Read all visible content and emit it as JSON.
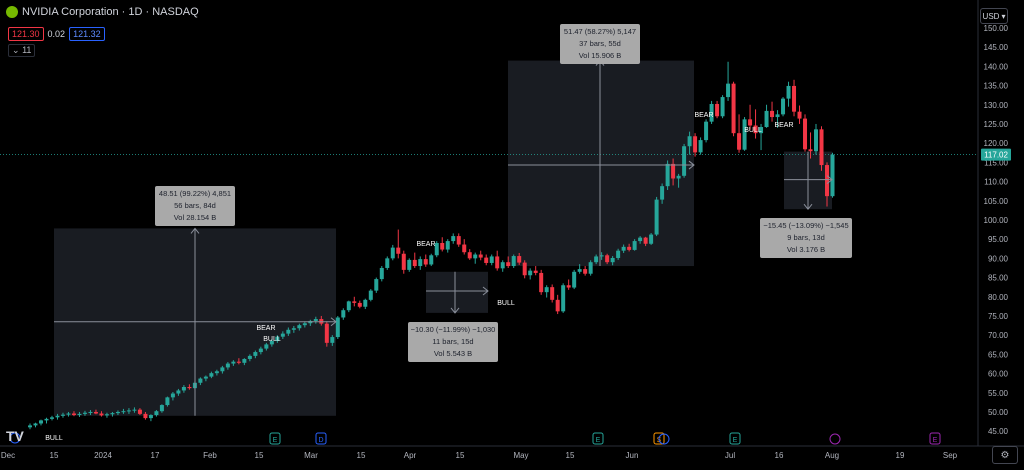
{
  "header": {
    "title": "NVIDIA Corporation · 1D · NASDAQ"
  },
  "prices": {
    "sell": "121.30",
    "spread": "0.02",
    "buy": "121.32"
  },
  "indicators": {
    "count": "11"
  },
  "currency": {
    "label": "USD"
  },
  "current_price": "117.02",
  "colors": {
    "up": "#26a69a",
    "down": "#f23645",
    "bg": "#000000",
    "grid": "#1a1d26",
    "box": "#1c1f26",
    "label_bg": "#a9a9a9"
  },
  "chart_data": {
    "type": "candlestick",
    "symbol": "NVIDIA Corporation",
    "interval": "1D",
    "exchange": "NASDAQ",
    "ylim": [
      43.5,
      154
    ],
    "y_ticks": [
      45,
      50,
      55,
      60,
      65,
      70,
      75,
      80,
      85,
      90,
      95,
      100,
      105,
      110,
      115,
      120,
      125,
      130,
      135,
      140,
      145,
      150
    ],
    "x_ticks": [
      "Dec",
      "15",
      "2024",
      "17",
      "Feb",
      "15",
      "Mar",
      "15",
      "Apr",
      "15",
      "May",
      "15",
      "Jun",
      "Jul",
      "16",
      "Aug",
      "19",
      "Sep"
    ],
    "grid": false,
    "candles": [
      [
        46,
        47,
        45.5,
        46.5
      ],
      [
        46.5,
        47.2,
        46,
        47
      ],
      [
        47,
        48,
        46.5,
        47.8
      ],
      [
        47.8,
        48.5,
        47,
        48.2
      ],
      [
        48.2,
        49,
        47.8,
        48.6
      ],
      [
        48.6,
        49.5,
        48,
        49
      ],
      [
        49,
        49.8,
        48.5,
        49.3
      ],
      [
        49.3,
        50,
        48.8,
        49.6
      ],
      [
        49.6,
        50.2,
        48.9,
        49.2
      ],
      [
        49.2,
        50,
        48.7,
        49.5
      ],
      [
        49.5,
        50.3,
        49,
        49.8
      ],
      [
        49.8,
        50.5,
        49.2,
        50
      ],
      [
        50,
        50.6,
        49.4,
        49.6
      ],
      [
        49.6,
        50.2,
        48.8,
        49.1
      ],
      [
        49.1,
        49.8,
        48.5,
        49.4
      ],
      [
        49.4,
        50,
        48.8,
        49.7
      ],
      [
        49.7,
        50.4,
        49.2,
        50
      ],
      [
        50,
        50.8,
        49.5,
        50.2
      ],
      [
        50.2,
        51,
        49.5,
        50.4
      ],
      [
        50.4,
        51.2,
        49.8,
        50.6
      ],
      [
        50.6,
        51,
        49.2,
        49.5
      ],
      [
        49.5,
        50,
        48,
        48.4
      ],
      [
        48.4,
        49.4,
        47.6,
        49.2
      ],
      [
        49.2,
        50.5,
        48.8,
        50.2
      ],
      [
        50.2,
        52,
        49.8,
        51.8
      ],
      [
        51.8,
        54,
        51.4,
        53.8
      ],
      [
        53.8,
        55.2,
        53,
        54.8
      ],
      [
        54.8,
        56,
        54.2,
        55.6
      ],
      [
        55.6,
        57,
        55,
        56.5
      ],
      [
        56.5,
        57.2,
        55.8,
        56.2
      ],
      [
        56.2,
        58,
        55.8,
        57.6
      ],
      [
        57.6,
        59,
        57,
        58.7
      ],
      [
        58.7,
        59.5,
        58,
        59.2
      ],
      [
        59.2,
        60.5,
        58.8,
        60.1
      ],
      [
        60.1,
        61,
        59.5,
        60.6
      ],
      [
        60.6,
        62,
        60,
        61.6
      ],
      [
        61.6,
        63,
        61,
        62.6
      ],
      [
        62.6,
        63.5,
        62,
        63.1
      ],
      [
        63.1,
        64,
        62.4,
        62.8
      ],
      [
        62.8,
        64,
        62.2,
        63.8
      ],
      [
        63.8,
        65,
        63.2,
        64.6
      ],
      [
        64.6,
        66,
        64,
        65.6
      ],
      [
        65.6,
        67,
        65,
        66.5
      ],
      [
        66.5,
        68,
        66,
        67.6
      ],
      [
        67.6,
        69,
        67,
        68.5
      ],
      [
        68.5,
        70,
        68,
        69.6
      ],
      [
        69.6,
        71,
        69,
        70.4
      ],
      [
        70.4,
        72,
        69.8,
        71.4
      ],
      [
        71.4,
        72.4,
        70.6,
        71.8
      ],
      [
        71.8,
        73,
        71.2,
        72.6
      ],
      [
        72.6,
        73.6,
        72,
        73.1
      ],
      [
        73.1,
        74,
        72.4,
        73.7
      ],
      [
        73.7,
        74.8,
        73,
        74.2
      ],
      [
        74.2,
        75,
        72.5,
        73
      ],
      [
        73,
        73.6,
        67,
        68
      ],
      [
        68,
        70,
        67.2,
        69.5
      ],
      [
        69.5,
        75,
        69,
        74.6
      ],
      [
        74.6,
        77,
        74,
        76.5
      ],
      [
        76.5,
        79,
        76,
        78.8
      ],
      [
        78.8,
        80,
        77.5,
        78.4
      ],
      [
        78.4,
        79,
        77,
        77.4
      ],
      [
        77.4,
        79.5,
        76.8,
        79.2
      ],
      [
        79.2,
        82,
        78.8,
        81.6
      ],
      [
        81.6,
        85,
        81,
        84.6
      ],
      [
        84.6,
        88,
        84,
        87.5
      ],
      [
        87.5,
        90.5,
        87,
        90
      ],
      [
        90,
        93.5,
        89.5,
        92.8
      ],
      [
        92.8,
        97.5,
        90,
        91.2
      ],
      [
        91.2,
        92,
        86,
        87
      ],
      [
        87,
        90,
        86.5,
        89.6
      ],
      [
        89.6,
        91.5,
        87.5,
        88
      ],
      [
        88,
        90.5,
        87,
        89.8
      ],
      [
        89.8,
        91,
        87.8,
        88.4
      ],
      [
        88.4,
        91.2,
        88,
        90.8
      ],
      [
        90.8,
        94.5,
        90.3,
        94
      ],
      [
        94,
        95.5,
        91.8,
        92.3
      ],
      [
        92.3,
        95,
        91.5,
        94.5
      ],
      [
        94.5,
        96.5,
        93.8,
        95.8
      ],
      [
        95.8,
        96.5,
        93,
        93.6
      ],
      [
        93.6,
        95,
        91,
        91.6
      ],
      [
        91.6,
        92.4,
        89.6,
        90
      ],
      [
        90,
        91.5,
        88.6,
        91
      ],
      [
        91,
        92,
        89.5,
        90.2
      ],
      [
        90.2,
        91,
        88.2,
        88.8
      ],
      [
        88.8,
        91,
        88.2,
        90.5
      ],
      [
        90.5,
        92,
        86.8,
        87.4
      ],
      [
        87.4,
        89.5,
        86.5,
        89
      ],
      [
        89,
        90.5,
        87.5,
        88
      ],
      [
        88,
        91,
        87.5,
        90.6
      ],
      [
        90.6,
        91.4,
        88.3,
        88.9
      ],
      [
        88.9,
        89.5,
        84.8,
        85.6
      ],
      [
        85.6,
        87.4,
        84.5,
        86.8
      ],
      [
        86.8,
        88,
        85.6,
        86.2
      ],
      [
        86.2,
        87,
        80.5,
        81.2
      ],
      [
        81.2,
        83,
        79.8,
        82.5
      ],
      [
        82.5,
        83.2,
        78.5,
        79.2
      ],
      [
        79.2,
        80.5,
        75.5,
        76.2
      ],
      [
        76.2,
        83.5,
        75.8,
        83
      ],
      [
        83,
        84.5,
        81.8,
        82.4
      ],
      [
        82.4,
        87,
        82,
        86.5
      ],
      [
        86.5,
        88.5,
        86,
        87.2
      ],
      [
        87.2,
        88,
        85.5,
        86
      ],
      [
        86,
        89.5,
        85.5,
        89
      ],
      [
        89,
        91,
        88.5,
        90.5
      ],
      [
        90.5,
        91.6,
        89.6,
        90.8
      ],
      [
        90.8,
        91.2,
        88.5,
        89
      ],
      [
        89,
        90.6,
        88.2,
        90.1
      ],
      [
        90.1,
        92.5,
        89.6,
        92
      ],
      [
        92,
        93.6,
        91.4,
        93
      ],
      [
        93,
        93.8,
        91.8,
        92.2
      ],
      [
        92.2,
        95,
        92,
        94.5
      ],
      [
        94.5,
        95.8,
        93.8,
        95.4
      ],
      [
        95.4,
        95.6,
        93.2,
        93.8
      ],
      [
        93.8,
        96.6,
        93.5,
        96.2
      ],
      [
        96.2,
        106,
        95.8,
        105.3
      ],
      [
        105.3,
        109.5,
        104.2,
        108.8
      ],
      [
        108.8,
        115.5,
        107.8,
        114.6
      ],
      [
        114.6,
        116,
        109,
        110.8
      ],
      [
        110.8,
        112,
        108.4,
        111.5
      ],
      [
        111.5,
        119.8,
        111,
        119.2
      ],
      [
        119.2,
        123,
        117,
        121.8
      ],
      [
        121.8,
        122.6,
        116.5,
        117.6
      ],
      [
        117.6,
        121.5,
        117,
        120.8
      ],
      [
        120.8,
        126.2,
        120.2,
        125.6
      ],
      [
        125.6,
        131,
        125,
        130.2
      ],
      [
        130.2,
        131,
        126.5,
        127
      ],
      [
        127,
        132.5,
        126.5,
        132
      ],
      [
        132,
        141.2,
        131,
        135.5
      ],
      [
        135.5,
        136,
        121.8,
        122.6
      ],
      [
        122.6,
        127.5,
        117.5,
        118.3
      ],
      [
        118.3,
        126.8,
        118,
        126.2
      ],
      [
        126.2,
        130,
        123.5,
        124.6
      ],
      [
        124.6,
        128.8,
        121.2,
        122.6
      ],
      [
        122.6,
        125,
        118.2,
        124.2
      ],
      [
        124.2,
        130,
        124,
        128.4
      ],
      [
        128.4,
        130.8,
        125.6,
        126.8
      ],
      [
        126.8,
        128.6,
        124,
        127.5
      ],
      [
        127.5,
        132,
        127,
        131.6
      ],
      [
        131.6,
        136,
        129.5,
        134.9
      ],
      [
        134.9,
        136.5,
        127,
        128.2
      ],
      [
        128.2,
        129.8,
        125,
        126.4
      ],
      [
        126.4,
        127.5,
        117.8,
        118.4
      ],
      [
        118.4,
        122.8,
        116,
        117.9
      ],
      [
        117.9,
        125,
        117,
        123.6
      ],
      [
        123.6,
        124.4,
        112.8,
        114.3
      ],
      [
        114.3,
        115,
        103.5,
        106.2
      ],
      [
        106.2,
        117.5,
        105.8,
        117.02
      ]
    ],
    "measurements": [
      {
        "lines": [
          "48.51 (99.22%) 4,851",
          "56 bars, 84d",
          "Vol 28.154 B"
        ],
        "direction": "up"
      },
      {
        "lines": [
          "−10.30 (−11.99%) −1,030",
          "11 bars, 15d",
          "Vol 5.543 B"
        ],
        "direction": "down"
      },
      {
        "lines": [
          "51.47 (58.27%) 5,147",
          "37 bars, 55d",
          "Vol 15.906 B"
        ],
        "direction": "up"
      },
      {
        "lines": [
          "−15.45 (−13.09%) −1,545",
          "9 bars, 13d",
          "Vol 3.176 B"
        ],
        "direction": "down"
      }
    ],
    "annotations": [
      "BULL",
      "BEAR",
      "BULL",
      "BEAR",
      "BULL",
      "BEAR",
      "BULL",
      "BEAR"
    ],
    "events": [
      "E",
      "D",
      "E",
      "E",
      "$",
      "E"
    ]
  }
}
